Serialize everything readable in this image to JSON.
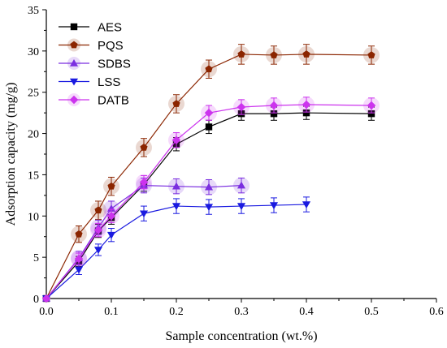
{
  "chart_data": {
    "type": "scatter",
    "title": "",
    "xlabel": "Sample concentration (wt.%)",
    "ylabel": "Adsorption capacity (mg/g)",
    "xlim": [
      0,
      0.6
    ],
    "ylim": [
      0,
      35
    ],
    "xticks": [
      "0.0",
      "0.1",
      "0.2",
      "0.3",
      "0.4",
      "0.5",
      "0.6"
    ],
    "yticks": [
      "0",
      "5",
      "10",
      "15",
      "20",
      "25",
      "30",
      "35"
    ],
    "grid": false,
    "legend": "top-left",
    "series": [
      {
        "name": "AES",
        "color": "#000000",
        "marker": "square",
        "glow": false,
        "x": [
          0,
          0.05,
          0.08,
          0.1,
          0.15,
          0.2,
          0.25,
          0.3,
          0.35,
          0.4,
          0.5
        ],
        "y": [
          0,
          4.5,
          8.2,
          9.8,
          13.8,
          18.7,
          20.8,
          22.4,
          22.4,
          22.5,
          22.4
        ],
        "err": [
          0,
          0.6,
          0.8,
          0.8,
          0.8,
          0.8,
          0.8,
          0.8,
          0.8,
          0.8,
          0.8
        ]
      },
      {
        "name": "PQS",
        "color": "#8B2500",
        "marker": "pentagon",
        "glow": true,
        "x": [
          0,
          0.05,
          0.08,
          0.1,
          0.15,
          0.2,
          0.25,
          0.3,
          0.35,
          0.4,
          0.5
        ],
        "y": [
          0,
          7.8,
          10.7,
          13.6,
          18.3,
          23.6,
          27.8,
          29.6,
          29.5,
          29.6,
          29.5
        ],
        "err": [
          0,
          1.0,
          1.1,
          1.1,
          1.1,
          1.1,
          1.1,
          1.2,
          1.1,
          1.2,
          1.1
        ]
      },
      {
        "name": "SDBS",
        "color": "#7B2FE0",
        "marker": "triangle-up",
        "glow": true,
        "x": [
          0,
          0.05,
          0.08,
          0.1,
          0.15,
          0.2,
          0.25,
          0.3
        ],
        "y": [
          0,
          4.9,
          8.6,
          10.9,
          13.7,
          13.6,
          13.5,
          13.7
        ],
        "err": [
          0,
          0.8,
          0.9,
          0.9,
          0.9,
          0.9,
          0.9,
          0.9
        ]
      },
      {
        "name": "LSS",
        "color": "#1A1AE0",
        "marker": "triangle-down",
        "glow": false,
        "x": [
          0,
          0.05,
          0.08,
          0.1,
          0.15,
          0.2,
          0.25,
          0.3,
          0.35,
          0.4
        ],
        "y": [
          0,
          3.5,
          5.9,
          7.7,
          10.3,
          11.2,
          11.1,
          11.2,
          11.3,
          11.4
        ],
        "err": [
          0,
          0.6,
          0.7,
          0.8,
          0.9,
          0.9,
          0.9,
          0.9,
          0.9,
          0.9
        ]
      },
      {
        "name": "DATB",
        "color": "#CC33EE",
        "marker": "diamond",
        "glow": true,
        "x": [
          0,
          0.05,
          0.08,
          0.1,
          0.15,
          0.2,
          0.25,
          0.3,
          0.35,
          0.4,
          0.5
        ],
        "y": [
          0,
          4.8,
          8.3,
          10.0,
          14.1,
          19.2,
          22.5,
          23.2,
          23.4,
          23.5,
          23.4
        ],
        "err": [
          0,
          0.7,
          0.8,
          0.8,
          0.8,
          0.9,
          0.9,
          0.9,
          0.9,
          0.9,
          0.9
        ]
      }
    ]
  }
}
